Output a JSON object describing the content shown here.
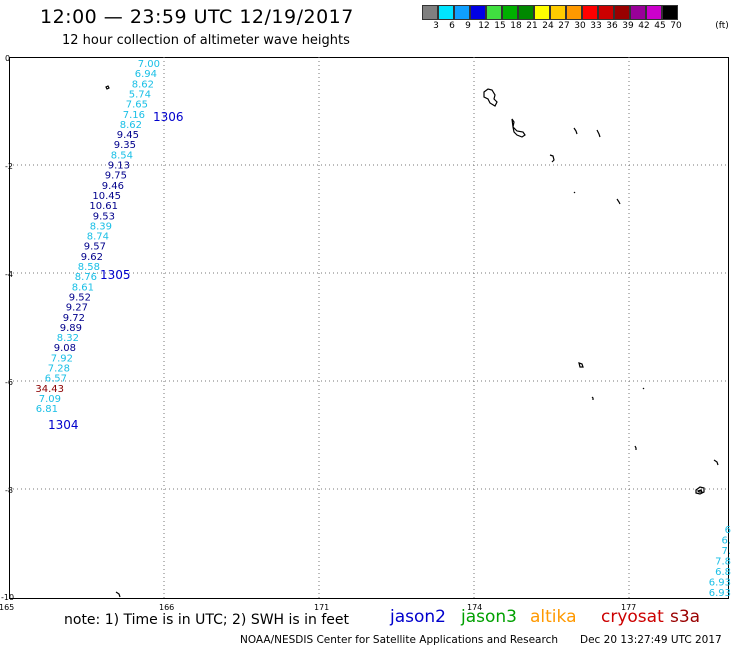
{
  "header": {
    "title": "12:00 — 23:59 UTC 12/19/2017",
    "subtitle": "12 hour collection of altimeter wave heights"
  },
  "color_scale": {
    "unit": "(ft)",
    "items": [
      {
        "label": "3",
        "color": "#7f7f7f"
      },
      {
        "label": "6",
        "color": "#00e5ff"
      },
      {
        "label": "9",
        "color": "#0fa0ff"
      },
      {
        "label": "12",
        "color": "#0000e6"
      },
      {
        "label": "15",
        "color": "#40e040"
      },
      {
        "label": "18",
        "color": "#00b000"
      },
      {
        "label": "21",
        "color": "#008800"
      },
      {
        "label": "24",
        "color": "#ffff00"
      },
      {
        "label": "27",
        "color": "#ffcc00"
      },
      {
        "label": "30",
        "color": "#ff9900"
      },
      {
        "label": "33",
        "color": "#ff0000"
      },
      {
        "label": "36",
        "color": "#cc0000"
      },
      {
        "label": "39",
        "color": "#990000"
      },
      {
        "label": "42",
        "color": "#990099"
      },
      {
        "label": "45",
        "color": "#cc00cc"
      },
      {
        "label": "70",
        "color": "#000000"
      }
    ]
  },
  "map": {
    "lon_ticks": [
      "165",
      "166",
      "171",
      "174",
      "177"
    ],
    "lat_ticks": [
      "0",
      "-2",
      "-4",
      "-6",
      "-8",
      "-10"
    ],
    "time_labels": [
      "1306",
      "1305",
      "1304"
    ],
    "track_values": [
      {
        "v": "7.00",
        "c": "#19bfe6"
      },
      {
        "v": "6.94",
        "c": "#19bfe6"
      },
      {
        "v": "8.62",
        "c": "#19bfe6"
      },
      {
        "v": "5.74",
        "c": "#19bfe6"
      },
      {
        "v": "7.65",
        "c": "#19bfe6"
      },
      {
        "v": "7.16",
        "c": "#19bfe6"
      },
      {
        "v": "8.62",
        "c": "#19bfe6"
      },
      {
        "v": "9.45",
        "c": "#00008b"
      },
      {
        "v": "9.35",
        "c": "#00008b"
      },
      {
        "v": "8.54",
        "c": "#19bfe6"
      },
      {
        "v": "9.13",
        "c": "#00008b"
      },
      {
        "v": "9.75",
        "c": "#00008b"
      },
      {
        "v": "9.46",
        "c": "#00008b"
      },
      {
        "v": "10.45",
        "c": "#00008b"
      },
      {
        "v": "10.61",
        "c": "#00008b"
      },
      {
        "v": "9.53",
        "c": "#00008b"
      },
      {
        "v": "8.39",
        "c": "#19bfe6"
      },
      {
        "v": "8.74",
        "c": "#19bfe6"
      },
      {
        "v": "9.57",
        "c": "#00008b"
      },
      {
        "v": "9.62",
        "c": "#00008b"
      },
      {
        "v": "8.58",
        "c": "#19bfe6"
      },
      {
        "v": "8.76",
        "c": "#19bfe6"
      },
      {
        "v": "8.61",
        "c": "#19bfe6"
      },
      {
        "v": "9.52",
        "c": "#00008b"
      },
      {
        "v": "9.27",
        "c": "#00008b"
      },
      {
        "v": "9.72",
        "c": "#00008b"
      },
      {
        "v": "9.89",
        "c": "#00008b"
      },
      {
        "v": "8.32",
        "c": "#19bfe6"
      },
      {
        "v": "9.08",
        "c": "#00008b"
      },
      {
        "v": "7.92",
        "c": "#19bfe6"
      },
      {
        "v": "7.28",
        "c": "#19bfe6"
      },
      {
        "v": "6.57",
        "c": "#19bfe6"
      },
      {
        "v": "34.43",
        "c": "#8b0000"
      },
      {
        "v": "7.09",
        "c": "#19bfe6"
      },
      {
        "v": "6.81",
        "c": "#19bfe6"
      }
    ],
    "edge_values": [
      "6",
      "6.",
      "7.",
      "7.8",
      "6.8",
      "6.93",
      "6.93"
    ]
  },
  "legend": {
    "note": "note:  1) Time is in UTC;  2) SWH is in feet",
    "satellites": [
      {
        "name": "jason2",
        "color": "#0000cc"
      },
      {
        "name": "jason3",
        "color": "#00a000"
      },
      {
        "name": "altika",
        "color": "#ff9900"
      },
      {
        "name": "cryosat",
        "color": "#cc0000"
      },
      {
        "name": "s3a",
        "color": "#990000"
      }
    ]
  },
  "footer": {
    "credit": "NOAA/NESDIS Center for Satellite Applications and Research",
    "timestamp": "Dec 20 13:27:49 UTC 2017"
  }
}
